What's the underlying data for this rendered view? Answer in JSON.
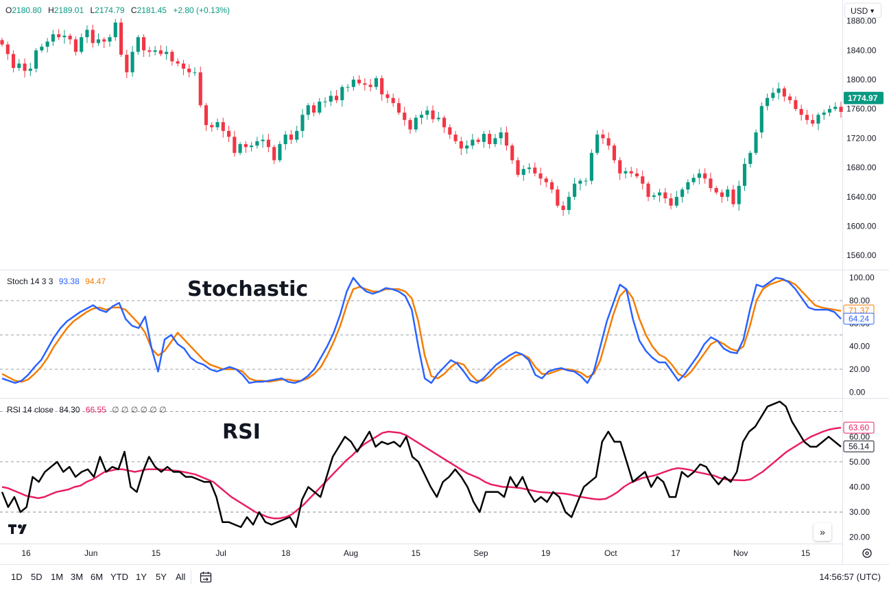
{
  "header": {
    "ohlc": {
      "o_label": "O",
      "o": "2180.80",
      "h_label": "H",
      "h": "2189.01",
      "l_label": "L",
      "l": "2174.79",
      "c_label": "C",
      "c": "2181.45",
      "change": "+2.80 (+0.13%)"
    },
    "currency": "USD"
  },
  "colors": {
    "up": "#089981",
    "down": "#f23645",
    "stoch_k": "#2962ff",
    "stoch_d": "#f57c00",
    "rsi": "#000000",
    "rsi_ma": "#e91e63"
  },
  "annotations": {
    "stochastic": "Stochastic",
    "rsi": "RSI"
  },
  "stoch_legend": {
    "name": "Stoch 14 3 3",
    "k": "93.38",
    "d": "94.47"
  },
  "rsi_legend": {
    "name": "RSI 14 close",
    "rsi": "84.30",
    "ma": "66.55",
    "extra": "∅ ∅ ∅ ∅ ∅ ∅"
  },
  "price_badge": "1774.97",
  "stoch_badges": {
    "d": "71.37",
    "k": "64.24"
  },
  "rsi_badges": {
    "ma": "63.60",
    "rsi": "56.14"
  },
  "timeframes": [
    "1D",
    "5D",
    "1M",
    "3M",
    "6M",
    "YTD",
    "1Y",
    "5Y",
    "All"
  ],
  "clock": "14:56:57 (UTC)",
  "chart_data": [
    {
      "type": "candlestick",
      "y_ticks": [
        1560,
        1600,
        1640,
        1680,
        1720,
        1760,
        1800,
        1840,
        1880
      ],
      "ylim": [
        1548,
        1890
      ],
      "x_ticks": [
        "16",
        "Jun",
        "15",
        "Jul",
        "18",
        "Aug",
        "15",
        "Sep",
        "19",
        "Oct",
        "17",
        "Nov",
        "15"
      ],
      "closes": [
        1848,
        1835,
        1816,
        1822,
        1812,
        1815,
        1840,
        1845,
        1852,
        1862,
        1858,
        1860,
        1855,
        1838,
        1858,
        1868,
        1850,
        1855,
        1852,
        1858,
        1878,
        1834,
        1810,
        1838,
        1858,
        1840,
        1838,
        1840,
        1835,
        1838,
        1825,
        1822,
        1815,
        1810,
        1810,
        1765,
        1738,
        1735,
        1742,
        1730,
        1722,
        1700,
        1712,
        1708,
        1710,
        1716,
        1718,
        1708,
        1690,
        1712,
        1725,
        1718,
        1730,
        1752,
        1765,
        1755,
        1770,
        1770,
        1778,
        1772,
        1790,
        1790,
        1800,
        1795,
        1793,
        1790,
        1802,
        1780,
        1775,
        1768,
        1755,
        1745,
        1732,
        1748,
        1752,
        1758,
        1746,
        1748,
        1735,
        1725,
        1716,
        1706,
        1710,
        1718,
        1715,
        1726,
        1712,
        1720,
        1728,
        1710,
        1690,
        1670,
        1678,
        1680,
        1672,
        1665,
        1660,
        1650,
        1628,
        1622,
        1640,
        1658,
        1662,
        1662,
        1700,
        1725,
        1720,
        1710,
        1690,
        1672,
        1675,
        1672,
        1668,
        1658,
        1640,
        1642,
        1646,
        1638,
        1628,
        1640,
        1650,
        1660,
        1666,
        1672,
        1665,
        1652,
        1646,
        1640,
        1650,
        1630,
        1655,
        1685,
        1700,
        1728,
        1764,
        1775,
        1782,
        1788,
        1777,
        1772,
        1760,
        1752,
        1745,
        1740,
        1752,
        1755,
        1760,
        1763,
        1756
      ]
    },
    {
      "type": "line",
      "name": "Stoch 14 3 3",
      "y_ticks": [
        0,
        20,
        40,
        60,
        80,
        100
      ],
      "levels": [
        20,
        50,
        80
      ],
      "ylim": [
        -4,
        104
      ],
      "series": [
        {
          "name": "K",
          "values": [
            12,
            10,
            8,
            10,
            15,
            22,
            28,
            38,
            48,
            56,
            62,
            66,
            70,
            73,
            76,
            72,
            70,
            75,
            78,
            64,
            58,
            56,
            66,
            38,
            18,
            46,
            50,
            42,
            38,
            30,
            26,
            24,
            20,
            18,
            20,
            22,
            20,
            15,
            8,
            9,
            9,
            10,
            11,
            12,
            9,
            8,
            10,
            14,
            20,
            30,
            40,
            52,
            68,
            88,
            100,
            93,
            88,
            86,
            88,
            91,
            90,
            88,
            84,
            72,
            40,
            12,
            8,
            16,
            22,
            28,
            25,
            18,
            10,
            8,
            12,
            18,
            24,
            28,
            32,
            35,
            33,
            28,
            15,
            12,
            18,
            20,
            21,
            19,
            18,
            14,
            8,
            18,
            40,
            62,
            78,
            94,
            90,
            64,
            45,
            36,
            30,
            26,
            26,
            18,
            10,
            16,
            24,
            32,
            42,
            48,
            45,
            38,
            35,
            34,
            46,
            72,
            94,
            92,
            96,
            100,
            99,
            96,
            90,
            82,
            74,
            72,
            72,
            72,
            70,
            64
          ]
        },
        {
          "name": "D",
          "values": [
            16,
            13,
            10,
            9,
            11,
            16,
            22,
            30,
            40,
            48,
            56,
            62,
            66,
            70,
            73,
            74,
            72,
            74,
            74,
            72,
            66,
            60,
            52,
            38,
            32,
            36,
            44,
            52,
            46,
            40,
            34,
            28,
            24,
            22,
            20,
            20,
            20,
            18,
            12,
            10,
            10,
            9,
            10,
            11,
            11,
            10,
            10,
            12,
            16,
            22,
            32,
            44,
            58,
            76,
            90,
            92,
            90,
            88,
            88,
            90,
            90,
            90,
            88,
            82,
            62,
            32,
            14,
            12,
            16,
            22,
            26,
            24,
            16,
            10,
            10,
            14,
            20,
            24,
            28,
            32,
            33,
            30,
            22,
            16,
            16,
            18,
            20,
            20,
            19,
            17,
            13,
            16,
            28,
            48,
            68,
            84,
            90,
            82,
            64,
            50,
            40,
            33,
            30,
            24,
            16,
            13,
            18,
            26,
            34,
            42,
            45,
            42,
            38,
            36,
            40,
            58,
            80,
            90,
            94,
            96,
            98,
            97,
            94,
            88,
            82,
            76,
            74,
            73,
            72,
            71
          ]
        }
      ]
    },
    {
      "type": "line",
      "name": "RSI 14 close",
      "y_ticks": [
        20,
        30,
        40,
        50,
        60
      ],
      "levels": [
        30,
        50,
        70
      ],
      "ylim": [
        18,
        74
      ],
      "series": [
        {
          "name": "RSI",
          "values": [
            38,
            32,
            36,
            30,
            32,
            44,
            42,
            46,
            48,
            50,
            46,
            48,
            44,
            46,
            47,
            44,
            52,
            46,
            48,
            47,
            54,
            40,
            38,
            46,
            52,
            48,
            46,
            48,
            46,
            46,
            44,
            44,
            43,
            42,
            42,
            36,
            26,
            26,
            25,
            24,
            28,
            25,
            30,
            26,
            25,
            26,
            27,
            28,
            24,
            35,
            40,
            38,
            36,
            44,
            52,
            56,
            60,
            58,
            54,
            58,
            62,
            56,
            58,
            57,
            58,
            56,
            60,
            52,
            50,
            45,
            40,
            36,
            42,
            44,
            47,
            44,
            40,
            34,
            30,
            38,
            38,
            38,
            36,
            44,
            40,
            44,
            38,
            34,
            36,
            34,
            38,
            36,
            30,
            28,
            34,
            40,
            42,
            44,
            58,
            62,
            58,
            58,
            50,
            42,
            44,
            46,
            40,
            44,
            42,
            36,
            36,
            46,
            44,
            46,
            49,
            48,
            44,
            41,
            44,
            42,
            46,
            58,
            62,
            64,
            68,
            72,
            73,
            74,
            72,
            66,
            62,
            58,
            56,
            56,
            58,
            60,
            58,
            56
          ]
        },
        {
          "name": "RSI MA",
          "values": [
            40,
            39.5,
            38.5,
            37.5,
            36.5,
            36,
            35.5,
            36,
            37,
            38,
            38.5,
            39,
            40,
            40.5,
            42,
            43,
            44.5,
            46,
            46.5,
            47,
            47,
            46.5,
            46,
            46.5,
            47,
            47,
            47,
            46.8,
            46.6,
            46.4,
            46,
            45.5,
            45,
            44,
            43,
            42,
            40,
            38,
            36,
            34.5,
            33,
            31.5,
            30,
            29,
            28,
            27.5,
            27.5,
            28,
            29,
            31,
            33,
            35.5,
            38,
            40.5,
            43,
            45.5,
            48,
            50.5,
            52.5,
            55,
            57,
            58.5,
            60,
            61.5,
            62,
            61.8,
            61.5,
            60.5,
            59,
            57.5,
            56,
            54.5,
            53,
            51.5,
            50,
            48.5,
            47,
            45.5,
            44.5,
            43.5,
            42,
            41,
            40.5,
            40,
            40,
            39.8,
            39.5,
            39,
            38.5,
            38,
            37.8,
            37.6,
            37.5,
            37.4,
            37,
            36.5,
            36,
            35.6,
            35.2,
            35,
            35.3,
            36.5,
            38,
            40,
            41.5,
            42.5,
            43.5,
            44,
            44.5,
            45.3,
            46.2,
            47,
            47.5,
            47.2,
            46.8,
            46,
            45.5,
            45,
            44.5,
            43.5,
            43,
            42.8,
            42.7,
            42.6,
            43,
            44.5,
            46,
            48,
            50,
            52,
            54,
            55.5,
            57,
            58.5,
            60,
            61,
            62,
            62.8,
            63.3,
            63.6
          ]
        }
      ]
    }
  ]
}
